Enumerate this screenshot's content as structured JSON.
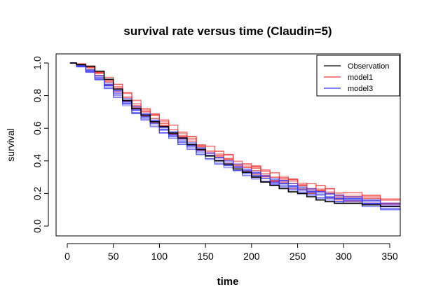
{
  "chart_data": {
    "type": "line",
    "title": "survival rate versus time (Claudin=5)",
    "xlabel": "time",
    "ylabel": "survival",
    "xlim": [
      0,
      362
    ],
    "ylim": [
      0,
      1
    ],
    "xticks": [
      0,
      50,
      100,
      150,
      200,
      250,
      300,
      350
    ],
    "yticks": [
      0.0,
      0.2,
      0.4,
      0.6,
      0.8,
      1.0
    ],
    "xtick_labels": [
      "0",
      "50",
      "100",
      "150",
      "200",
      "250",
      "300",
      "350"
    ],
    "ytick_labels": [
      "0.0",
      "0.2",
      "0.4",
      "0.6",
      "0.8",
      "1.0"
    ],
    "legend_position": "top-right",
    "series": [
      {
        "name": "Observation",
        "color": "#000000",
        "x": [
          3,
          10,
          20,
          30,
          40,
          50,
          60,
          70,
          80,
          90,
          100,
          110,
          120,
          130,
          140,
          150,
          160,
          170,
          180,
          190,
          200,
          210,
          220,
          230,
          240,
          250,
          260,
          270,
          280,
          290,
          300,
          320,
          340,
          362
        ],
        "y": [
          1.0,
          0.99,
          0.98,
          0.95,
          0.9,
          0.84,
          0.77,
          0.72,
          0.68,
          0.64,
          0.61,
          0.57,
          0.54,
          0.5,
          0.47,
          0.43,
          0.4,
          0.38,
          0.35,
          0.33,
          0.3,
          0.27,
          0.25,
          0.23,
          0.21,
          0.2,
          0.18,
          0.16,
          0.15,
          0.14,
          0.14,
          0.13,
          0.12,
          0.11
        ]
      },
      {
        "name": "model1",
        "color": "#f03c3c",
        "x": [
          3,
          10,
          20,
          30,
          40,
          50,
          60,
          70,
          80,
          90,
          100,
          110,
          120,
          130,
          140,
          150,
          160,
          170,
          180,
          190,
          200,
          210,
          220,
          230,
          240,
          250,
          260,
          270,
          280,
          290,
          300,
          320,
          340,
          362
        ],
        "y": [
          1.0,
          0.99,
          0.97,
          0.94,
          0.89,
          0.84,
          0.79,
          0.75,
          0.7,
          0.66,
          0.63,
          0.59,
          0.55,
          0.52,
          0.49,
          0.46,
          0.43,
          0.41,
          0.38,
          0.36,
          0.34,
          0.32,
          0.3,
          0.28,
          0.26,
          0.25,
          0.23,
          0.22,
          0.2,
          0.19,
          0.18,
          0.16,
          0.14,
          0.12
        ]
      },
      {
        "name": "model3",
        "color": "#3c3cf0",
        "x": [
          3,
          10,
          20,
          30,
          40,
          50,
          60,
          70,
          80,
          90,
          100,
          110,
          120,
          130,
          140,
          150,
          160,
          170,
          180,
          190,
          200,
          210,
          220,
          230,
          240,
          250,
          260,
          270,
          280,
          290,
          300,
          320,
          340,
          362
        ],
        "y": [
          1.0,
          0.98,
          0.95,
          0.91,
          0.86,
          0.81,
          0.76,
          0.71,
          0.67,
          0.63,
          0.59,
          0.56,
          0.52,
          0.49,
          0.46,
          0.43,
          0.4,
          0.38,
          0.36,
          0.33,
          0.31,
          0.29,
          0.27,
          0.26,
          0.24,
          0.22,
          0.21,
          0.19,
          0.18,
          0.17,
          0.16,
          0.14,
          0.12,
          0.1
        ]
      }
    ]
  }
}
